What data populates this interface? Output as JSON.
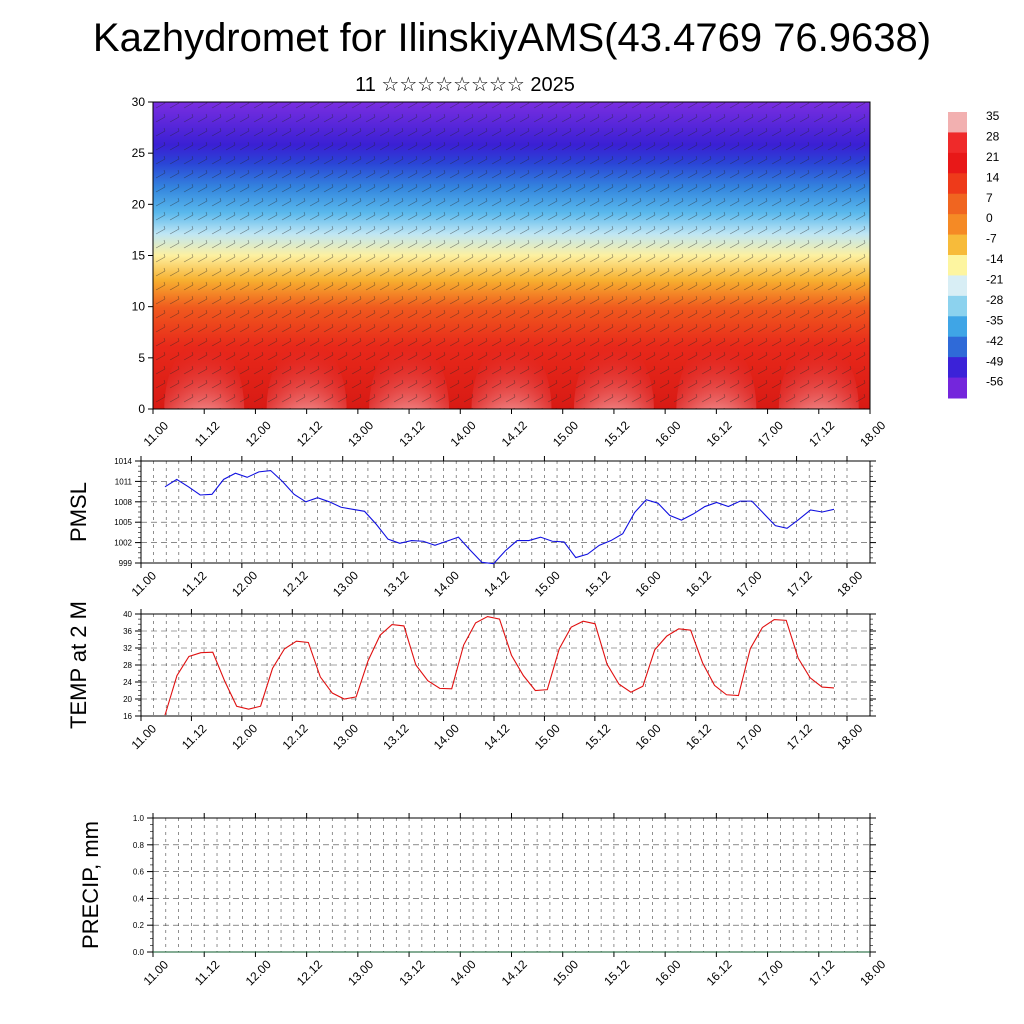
{
  "title": "Kazhydromet for IlinskiyAMS(43.4769 76.9638)",
  "subtitle": "11 ☆☆☆☆☆☆☆☆ 2025",
  "colorbar": {
    "labels": [
      "35",
      "28",
      "21",
      "14",
      "7",
      "0",
      "-7",
      "-14",
      "-21",
      "-28",
      "-35",
      "-42",
      "-49",
      "-56"
    ],
    "colors": [
      "#f2b0b0",
      "#ef2a2a",
      "#e81818",
      "#ee3a1a",
      "#f06520",
      "#f58a25",
      "#f7bb3a",
      "#fdf5a0",
      "#d8eef5",
      "#8cd2ee",
      "#3fa5e6",
      "#2f6ad8",
      "#3b22d8",
      "#7426dc"
    ]
  },
  "chart_data": [
    {
      "type": "heatmap",
      "name": "vertical-section",
      "ylim": [
        0,
        30
      ],
      "yticks": [
        "0",
        "5",
        "10",
        "15",
        "20",
        "25",
        "30"
      ],
      "xticks": [
        "11.00",
        "11.12",
        "12.00",
        "12.12",
        "13.00",
        "13.12",
        "14.00",
        "14.12",
        "15.00",
        "15.12",
        "16.00",
        "16.12",
        "17.00",
        "17.12",
        "18.00"
      ],
      "value_range": [
        -56,
        35
      ],
      "warm_cores_x": [
        "11.12",
        "12.12",
        "13.12",
        "14.12",
        "15.12",
        "16.12",
        "17.12"
      ]
    },
    {
      "type": "line",
      "ylabel": "PMSL",
      "ylim": [
        999,
        1014
      ],
      "yticks": [
        "999",
        "1002",
        "1005",
        "1008",
        "1011",
        "1014"
      ],
      "xticks": [
        "11.00",
        "11.12",
        "12.00",
        "12.12",
        "13.00",
        "13.12",
        "14.00",
        "14.12",
        "15.00",
        "15.12",
        "16.00",
        "16.12",
        "17.00",
        "17.12",
        "18.00"
      ],
      "color": "#1010e0",
      "values": [
        1010.2,
        1011.3,
        1010.2,
        1009.0,
        1009.1,
        1011.3,
        1012.2,
        1011.6,
        1012.4,
        1012.6,
        1011.0,
        1009.1,
        1008.0,
        1008.6,
        1008.0,
        1007.2,
        1006.9,
        1006.6,
        1004.7,
        1002.5,
        1001.9,
        1002.3,
        1002.2,
        1001.6,
        1002.2,
        1002.8,
        1000.9,
        999.1,
        998.9,
        1000.8,
        1002.3,
        1002.3,
        1002.8,
        1002.2,
        1002.1,
        999.8,
        1000.3,
        1001.6,
        1002.3,
        1003.3,
        1006.4,
        1008.3,
        1007.8,
        1006.0,
        1005.3,
        1006.2,
        1007.3,
        1007.9,
        1007.3,
        1008.1,
        1008.1,
        1006.3,
        1004.5,
        1004.1,
        1005.4,
        1006.8,
        1006.5,
        1006.9
      ]
    },
    {
      "type": "line",
      "ylabel": "TEMP at 2 M",
      "ylim": [
        16,
        40
      ],
      "yticks": [
        "16",
        "20",
        "24",
        "28",
        "32",
        "36",
        "40"
      ],
      "xticks": [
        "11.00",
        "11.12",
        "12.00",
        "12.12",
        "13.00",
        "13.12",
        "14.00",
        "14.12",
        "15.00",
        "15.12",
        "16.00",
        "16.12",
        "17.00",
        "17.12",
        "18.00"
      ],
      "color": "#e01010",
      "values": [
        16.2,
        25.5,
        30.0,
        30.9,
        31.0,
        24.2,
        18.3,
        17.6,
        18.3,
        27.2,
        31.8,
        33.6,
        33.3,
        25.2,
        21.4,
        20.0,
        20.5,
        29.0,
        35.0,
        37.5,
        37.2,
        28.0,
        24.3,
        22.5,
        22.4,
        32.7,
        37.9,
        39.4,
        38.8,
        30.3,
        25.5,
        22.0,
        22.2,
        31.8,
        36.9,
        38.3,
        37.7,
        28.2,
        23.5,
        21.6,
        23.0,
        31.6,
        34.8,
        36.5,
        36.2,
        28.5,
        23.2,
        21.0,
        20.8,
        31.9,
        36.8,
        38.7,
        38.5,
        29.6,
        25.0,
        22.8,
        22.6
      ]
    },
    {
      "type": "line",
      "ylabel": "PRECIP, mm",
      "ylim": [
        0,
        1.0
      ],
      "yticks": [
        "0.0",
        "0.2",
        "0.4",
        "0.6",
        "0.8",
        "1.0"
      ],
      "xticks": [
        "11.00",
        "11.12",
        "12.00",
        "12.12",
        "13.00",
        "13.12",
        "14.00",
        "14.12",
        "15.00",
        "15.12",
        "16.00",
        "16.12",
        "17.00",
        "17.12",
        "18.00"
      ],
      "color": "#0a5a2a",
      "values": [
        0,
        0,
        0,
        0,
        0,
        0,
        0,
        0,
        0,
        0,
        0,
        0,
        0,
        0,
        0,
        0,
        0,
        0,
        0,
        0,
        0,
        0,
        0,
        0,
        0,
        0,
        0,
        0,
        0,
        0,
        0,
        0,
        0,
        0,
        0,
        0,
        0,
        0,
        0,
        0,
        0,
        0,
        0,
        0,
        0,
        0,
        0,
        0,
        0,
        0,
        0,
        0,
        0,
        0,
        0,
        0,
        0,
        0,
        0
      ]
    }
  ]
}
